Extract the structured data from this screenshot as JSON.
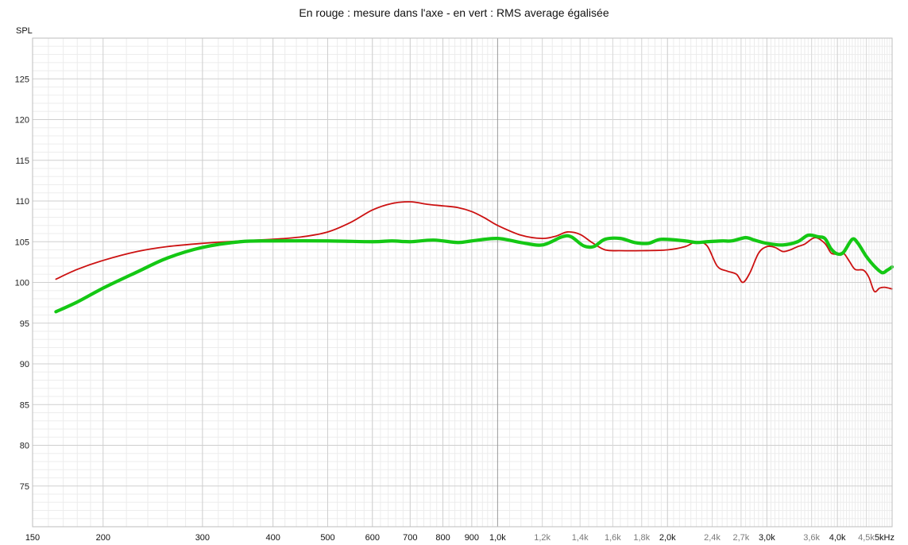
{
  "chart_data": {
    "type": "line",
    "title": "En rouge : mesure dans l'axe - en vert : RMS average égalisée",
    "ylabel": "SPL",
    "xlabel": "",
    "x_scale": "log",
    "xlim": [
      150,
      5000
    ],
    "ylim": [
      70,
      130
    ],
    "y_ticks": [
      75,
      80,
      85,
      90,
      95,
      100,
      105,
      110,
      115,
      120,
      125
    ],
    "x_ticks": [
      {
        "value": 150,
        "label": "150",
        "major": true
      },
      {
        "value": 200,
        "label": "200",
        "major": true
      },
      {
        "value": 300,
        "label": "300",
        "major": true
      },
      {
        "value": 400,
        "label": "400",
        "major": true
      },
      {
        "value": 500,
        "label": "500",
        "major": true
      },
      {
        "value": 600,
        "label": "600",
        "major": true
      },
      {
        "value": 700,
        "label": "700",
        "major": true
      },
      {
        "value": 800,
        "label": "800",
        "major": true
      },
      {
        "value": 900,
        "label": "900",
        "major": true
      },
      {
        "value": 1000,
        "label": "1,0k",
        "major": true
      },
      {
        "value": 1200,
        "label": "1,2k",
        "major": false
      },
      {
        "value": 1400,
        "label": "1,4k",
        "major": false
      },
      {
        "value": 1600,
        "label": "1,6k",
        "major": false
      },
      {
        "value": 1800,
        "label": "1,8k",
        "major": false
      },
      {
        "value": 2000,
        "label": "2,0k",
        "major": true
      },
      {
        "value": 2400,
        "label": "2,4k",
        "major": false
      },
      {
        "value": 2700,
        "label": "2,7k",
        "major": false
      },
      {
        "value": 3000,
        "label": "3,0k",
        "major": true
      },
      {
        "value": 3600,
        "label": "3,6k",
        "major": false
      },
      {
        "value": 4000,
        "label": "4,0k",
        "major": true
      },
      {
        "value": 4500,
        "label": "4,5k",
        "major": false
      },
      {
        "value": 5000,
        "label": "5kHz",
        "major": true
      }
    ],
    "grid": true,
    "series": [
      {
        "color": "#cc1111",
        "points": [
          [
            165,
            100.4
          ],
          [
            180,
            101.6
          ],
          [
            200,
            102.7
          ],
          [
            230,
            103.8
          ],
          [
            260,
            104.4
          ],
          [
            300,
            104.8
          ],
          [
            350,
            105.1
          ],
          [
            400,
            105.3
          ],
          [
            450,
            105.6
          ],
          [
            500,
            106.2
          ],
          [
            550,
            107.4
          ],
          [
            600,
            108.9
          ],
          [
            650,
            109.7
          ],
          [
            700,
            109.9
          ],
          [
            750,
            109.6
          ],
          [
            800,
            109.4
          ],
          [
            850,
            109.2
          ],
          [
            900,
            108.7
          ],
          [
            950,
            107.9
          ],
          [
            1000,
            107.0
          ],
          [
            1100,
            105.8
          ],
          [
            1200,
            105.4
          ],
          [
            1270,
            105.7
          ],
          [
            1330,
            106.2
          ],
          [
            1400,
            105.9
          ],
          [
            1470,
            104.9
          ],
          [
            1550,
            104.0
          ],
          [
            1650,
            103.9
          ],
          [
            1800,
            103.9
          ],
          [
            2000,
            104.0
          ],
          [
            2150,
            104.4
          ],
          [
            2250,
            105.0
          ],
          [
            2350,
            104.5
          ],
          [
            2450,
            102.0
          ],
          [
            2550,
            101.4
          ],
          [
            2650,
            101.0
          ],
          [
            2720,
            100.0
          ],
          [
            2800,
            101.2
          ],
          [
            2900,
            103.6
          ],
          [
            3000,
            104.4
          ],
          [
            3100,
            104.3
          ],
          [
            3200,
            103.8
          ],
          [
            3300,
            104.0
          ],
          [
            3400,
            104.4
          ],
          [
            3500,
            104.7
          ],
          [
            3650,
            105.5
          ],
          [
            3800,
            104.8
          ],
          [
            3900,
            103.6
          ],
          [
            4000,
            103.5
          ],
          [
            4100,
            103.6
          ],
          [
            4200,
            102.6
          ],
          [
            4300,
            101.6
          ],
          [
            4450,
            101.5
          ],
          [
            4550,
            100.6
          ],
          [
            4650,
            98.9
          ],
          [
            4750,
            99.3
          ],
          [
            4850,
            99.4
          ],
          [
            5000,
            99.2
          ]
        ]
      },
      {
        "color": "#14c814",
        "points": [
          [
            165,
            96.4
          ],
          [
            180,
            97.6
          ],
          [
            200,
            99.3
          ],
          [
            230,
            101.3
          ],
          [
            260,
            103.0
          ],
          [
            300,
            104.3
          ],
          [
            350,
            105.0
          ],
          [
            400,
            105.1
          ],
          [
            500,
            105.1
          ],
          [
            600,
            105.0
          ],
          [
            650,
            105.1
          ],
          [
            700,
            105.0
          ],
          [
            770,
            105.2
          ],
          [
            850,
            104.9
          ],
          [
            900,
            105.1
          ],
          [
            1000,
            105.4
          ],
          [
            1100,
            104.9
          ],
          [
            1200,
            104.6
          ],
          [
            1300,
            105.6
          ],
          [
            1350,
            105.6
          ],
          [
            1420,
            104.5
          ],
          [
            1480,
            104.4
          ],
          [
            1550,
            105.3
          ],
          [
            1650,
            105.4
          ],
          [
            1750,
            104.9
          ],
          [
            1850,
            104.8
          ],
          [
            1950,
            105.3
          ],
          [
            2150,
            105.1
          ],
          [
            2250,
            104.9
          ],
          [
            2350,
            105.0
          ],
          [
            2500,
            105.1
          ],
          [
            2600,
            105.1
          ],
          [
            2750,
            105.5
          ],
          [
            2850,
            105.2
          ],
          [
            3000,
            104.8
          ],
          [
            3200,
            104.6
          ],
          [
            3400,
            105.0
          ],
          [
            3550,
            105.8
          ],
          [
            3700,
            105.6
          ],
          [
            3800,
            105.4
          ],
          [
            3900,
            104.1
          ],
          [
            4000,
            103.5
          ],
          [
            4100,
            103.7
          ],
          [
            4250,
            105.3
          ],
          [
            4350,
            104.8
          ],
          [
            4500,
            103.2
          ],
          [
            4650,
            102.0
          ],
          [
            4800,
            101.2
          ],
          [
            4900,
            101.5
          ],
          [
            5000,
            101.9
          ]
        ]
      }
    ]
  }
}
